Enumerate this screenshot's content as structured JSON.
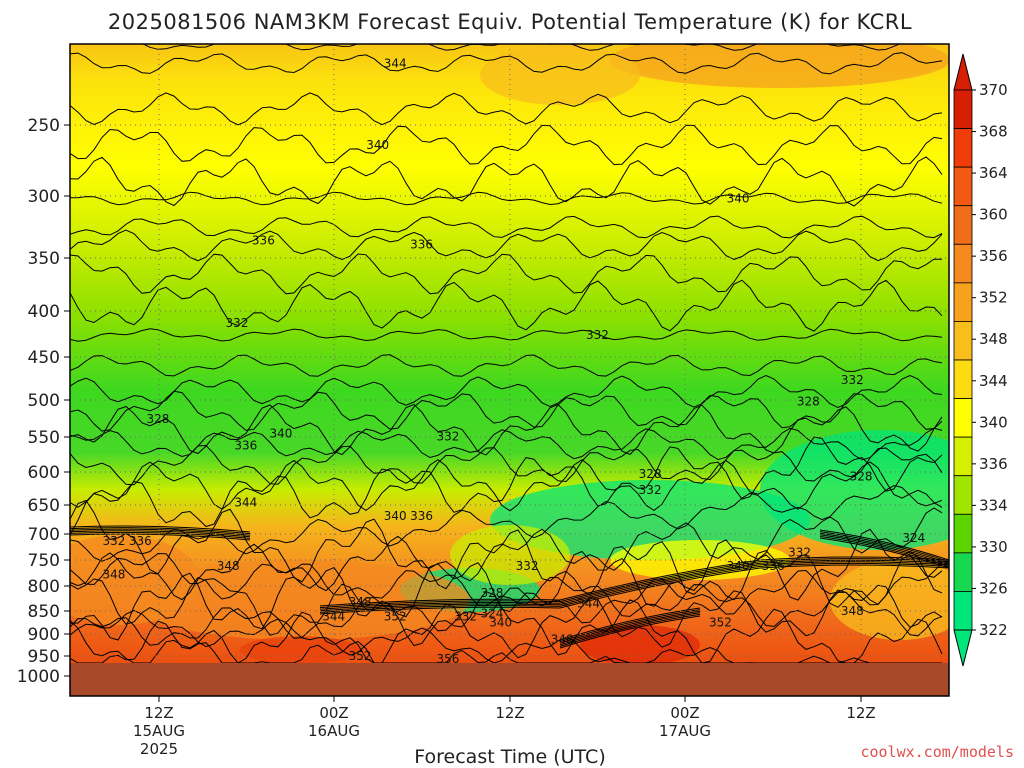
{
  "chart_data": {
    "type": "heatmap",
    "title": "2025081506 NAM3KM Forecast Equiv. Potential Temperature (K) for KCRL",
    "xlabel": "Forecast Time (UTC)",
    "ylabel": "",
    "credit": "coolwx.com/models",
    "y_axis": {
      "scale": "pressure (inverted, log-like)",
      "ticks": [
        "250",
        "300",
        "350",
        "400",
        "450",
        "500",
        "550",
        "600",
        "650",
        "700",
        "750",
        "800",
        "850",
        "900",
        "950",
        "1000"
      ],
      "ylim": [
        1000,
        200
      ]
    },
    "x_axis": {
      "ticks": [
        {
          "lines": [
            "12Z",
            "15AUG",
            "2025"
          ]
        },
        {
          "lines": [
            "00Z",
            "16AUG"
          ]
        },
        {
          "lines": [
            "12Z"
          ]
        },
        {
          "lines": [
            "00Z",
            "17AUG"
          ]
        },
        {
          "lines": [
            "12Z"
          ]
        }
      ]
    },
    "grid": true,
    "colorbar": {
      "ticks": [
        "370",
        "368",
        "364",
        "360",
        "356",
        "352",
        "348",
        "344",
        "340",
        "336",
        "334",
        "330",
        "326",
        "322"
      ],
      "colors": [
        "#d81e05",
        "#f03c0a",
        "#f25a14",
        "#f06e1a",
        "#f48a20",
        "#f6a21e",
        "#f8be1c",
        "#fcdc10",
        "#ffff00",
        "#d4f000",
        "#a0e400",
        "#5cd400",
        "#18d850",
        "#00e67a"
      ],
      "placement": "right"
    },
    "contour_labels": [
      {
        "text": "344",
        "time": 0.37,
        "p": 212
      },
      {
        "text": "340",
        "time": 0.35,
        "p": 264
      },
      {
        "text": "340",
        "time": 0.76,
        "p": 302
      },
      {
        "text": "336",
        "time": 0.22,
        "p": 336
      },
      {
        "text": "336",
        "time": 0.4,
        "p": 339
      },
      {
        "text": "332",
        "time": 0.19,
        "p": 413
      },
      {
        "text": "332",
        "time": 0.6,
        "p": 426
      },
      {
        "text": "332",
        "time": 0.89,
        "p": 477
      },
      {
        "text": "328",
        "time": 0.1,
        "p": 526
      },
      {
        "text": "328",
        "time": 0.84,
        "p": 502
      },
      {
        "text": "340",
        "time": 0.24,
        "p": 545
      },
      {
        "text": "336",
        "time": 0.2,
        "p": 562
      },
      {
        "text": "332",
        "time": 0.43,
        "p": 549
      },
      {
        "text": "328",
        "time": 0.66,
        "p": 603
      },
      {
        "text": "328",
        "time": 0.9,
        "p": 607
      },
      {
        "text": "332",
        "time": 0.66,
        "p": 627
      },
      {
        "text": "344",
        "time": 0.2,
        "p": 646
      },
      {
        "text": "340",
        "time": 0.37,
        "p": 669
      },
      {
        "text": "336",
        "time": 0.4,
        "p": 669
      },
      {
        "text": "332",
        "time": 0.05,
        "p": 713
      },
      {
        "text": "336",
        "time": 0.08,
        "p": 713
      },
      {
        "text": "324",
        "time": 0.96,
        "p": 708
      },
      {
        "text": "332",
        "time": 0.83,
        "p": 736
      },
      {
        "text": "340",
        "time": 0.76,
        "p": 762
      },
      {
        "text": "336",
        "time": 0.8,
        "p": 762
      },
      {
        "text": "348",
        "time": 0.05,
        "p": 778
      },
      {
        "text": "348",
        "time": 0.18,
        "p": 762
      },
      {
        "text": "332",
        "time": 0.52,
        "p": 762
      },
      {
        "text": "328",
        "time": 0.48,
        "p": 814
      },
      {
        "text": "348",
        "time": 0.33,
        "p": 832
      },
      {
        "text": "344",
        "time": 0.59,
        "p": 835
      },
      {
        "text": "348",
        "time": 0.89,
        "p": 850
      },
      {
        "text": "344",
        "time": 0.3,
        "p": 862
      },
      {
        "text": "352",
        "time": 0.37,
        "p": 862
      },
      {
        "text": "332",
        "time": 0.45,
        "p": 862
      },
      {
        "text": "324",
        "time": 0.48,
        "p": 855
      },
      {
        "text": "340",
        "time": 0.49,
        "p": 875
      },
      {
        "text": "352",
        "time": 0.74,
        "p": 875
      },
      {
        "text": "348",
        "time": 0.56,
        "p": 912
      },
      {
        "text": "352",
        "time": 0.33,
        "p": 950
      },
      {
        "text": "356",
        "time": 0.43,
        "p": 958
      }
    ]
  }
}
